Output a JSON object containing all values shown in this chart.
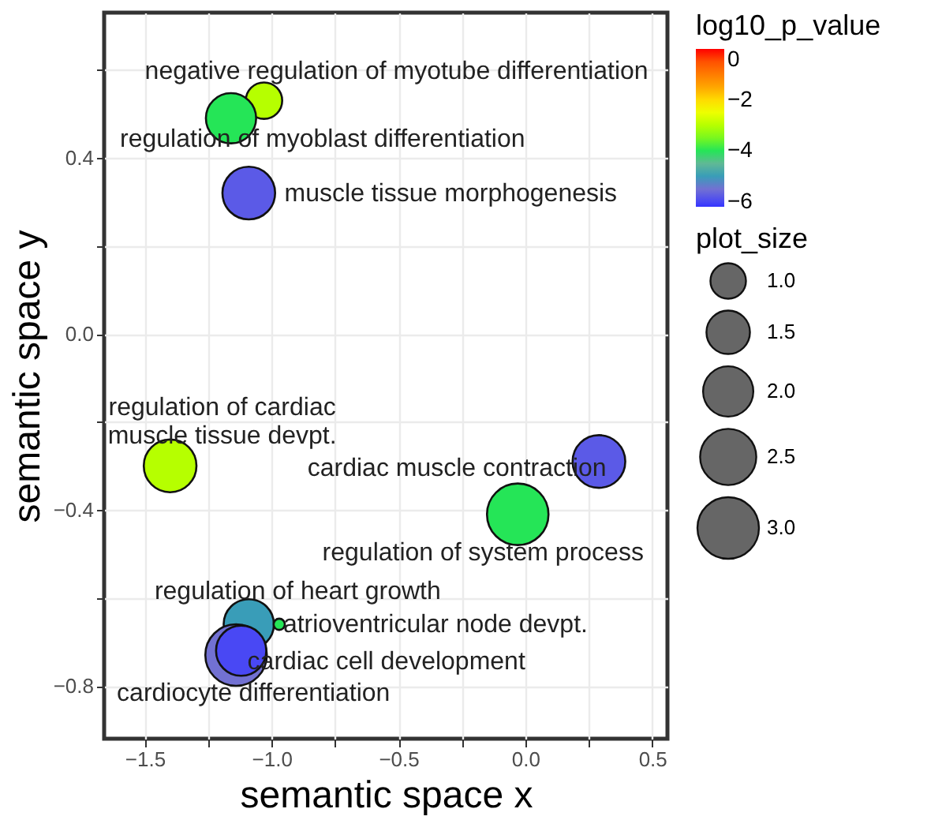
{
  "chart_data": {
    "type": "bubble",
    "xlabel": "semantic space x",
    "ylabel": "semantic space y",
    "legend_title": "plot_size",
    "clabel": "log10_p_value",
    "x": [
      -1.03,
      -1.16,
      -1.09,
      -1.4,
      0.29,
      -0.03,
      -1.09,
      -0.97,
      -1.14,
      -1.12
    ],
    "values": [
      0.53,
      0.49,
      0.32,
      -0.3,
      -0.29,
      -0.41,
      -0.66,
      -0.66,
      -0.73,
      -0.72
    ],
    "sizes": [
      1.05,
      2.0,
      2.2,
      2.2,
      2.2,
      3.0,
      2.0,
      0.1,
      3.0,
      2.0
    ],
    "cvalues": [
      -3,
      -4,
      -5.8,
      -3,
      -5.8,
      -4,
      -5,
      -4,
      -5.5,
      -6
    ],
    "size_legend": [
      {
        "value": 1,
        "label": "1.0"
      },
      {
        "value": 1.5,
        "label": "1.5"
      },
      {
        "value": 2,
        "label": "2.0"
      },
      {
        "value": 2.5,
        "label": "2.5"
      },
      {
        "value": 3,
        "label": "3.0"
      }
    ],
    "clim": [
      -6.2,
      0
    ],
    "cticks": [
      0,
      {
        "value": -2,
        "label": "−2"
      },
      {
        "value": -4,
        "label": "−4"
      },
      {
        "value": -6,
        "label": "−6"
      }
    ],
    "xlim": [
      -1.66,
      0.56
    ],
    "ylim": [
      -0.92,
      0.73
    ],
    "xticks": [
      {
        "value": -1.5,
        "label": "−1.5"
      },
      {
        "value": -1.25,
        "label": null
      },
      {
        "value": -1.0,
        "label": "−1.0"
      },
      {
        "value": -0.75,
        "label": null
      },
      {
        "value": -0.5,
        "label": "−0.5"
      },
      {
        "value": -0.25,
        "label": null
      },
      {
        "value": 0,
        "label": "0.0"
      },
      {
        "value": 0.25,
        "label": null
      },
      {
        "value": 0.5,
        "label": "0.5"
      }
    ],
    "yticks": [
      {
        "value": -0.8,
        "label": "−0.8"
      },
      {
        "value": -0.6,
        "label": null
      },
      {
        "value": -0.4,
        "label": "−0.4"
      },
      {
        "value": -0.2,
        "label": null
      },
      {
        "value": 0,
        "label": "0.0"
      },
      {
        "value": 0.2,
        "label": null
      },
      {
        "value": 0.4,
        "label": "0.4"
      },
      {
        "value": 0.6,
        "label": null
      }
    ],
    "grid": true,
    "annotations": [
      {
        "text": "negative regulation of myotube differentiation",
        "x": -1.03,
        "y": 0.53
      },
      {
        "text": "regulation of myoblast differentiation",
        "x": -1.16,
        "y": 0.49
      },
      {
        "text": "muscle tissue morphogenesis",
        "x": -1.09,
        "y": 0.32
      },
      {
        "text": "regulation of cardiac\nmuscle tissue devpt.",
        "x": -1.4,
        "y": -0.3
      },
      {
        "text": "cardiac muscle contraction",
        "x": 0.29,
        "y": -0.29
      },
      {
        "text": "regulation of system process",
        "x": -0.03,
        "y": -0.41
      },
      {
        "text": "regulation of heart growth",
        "x": -1.09,
        "y": -0.66
      },
      {
        "text": "atrioventricular node devpt.",
        "x": -0.97,
        "y": -0.66
      },
      {
        "text": "cardiac cell development",
        "x": -1.12,
        "y": -0.72
      },
      {
        "text": "cardiocyte differentiation",
        "x": -1.14,
        "y": -0.73
      }
    ]
  }
}
